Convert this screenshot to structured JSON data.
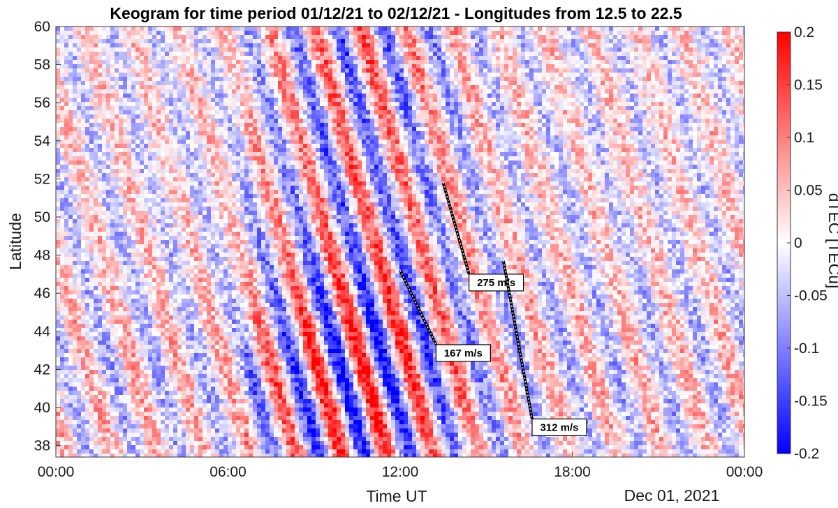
{
  "chart_data": {
    "type": "heatmap",
    "title": "Keogram for time period 01/12/21 to 02/12/21 - Longitudes from 12.5 to 22.5",
    "xlabel": "Time UT",
    "ylabel": "Latitude",
    "date_label": "Dec 01, 2021",
    "x_ticks": [
      "00:00",
      "06:00",
      "12:00",
      "18:00",
      "00:00"
    ],
    "x_tick_hours": [
      0,
      6,
      12,
      18,
      24
    ],
    "xlim_hours": [
      0,
      24
    ],
    "y_ticks": [
      38,
      40,
      42,
      44,
      46,
      48,
      50,
      52,
      54,
      56,
      58,
      60
    ],
    "ylim": [
      37.4,
      60
    ],
    "colorbar": {
      "label": "dTEC [TECu]",
      "ticks": [
        "0.2",
        "0.15",
        "0.1",
        "0.05",
        "0",
        "-0.05",
        "-0.1",
        "-0.15",
        "-0.2"
      ],
      "range": [
        -0.2,
        0.2
      ],
      "colors": {
        "low": "#0000ff",
        "mid": "#ffffff",
        "high": "#ff0000"
      }
    },
    "annotations": [
      {
        "text": "167 m/s",
        "line": [
          [
            12.0,
            47.2
          ],
          [
            13.25,
            43.3
          ]
        ]
      },
      {
        "text": "275 m/s",
        "line": [
          [
            13.5,
            51.8
          ],
          [
            14.4,
            47.0
          ]
        ]
      },
      {
        "text": "312 m/s",
        "line": [
          [
            15.6,
            47.7
          ],
          [
            16.6,
            39.4
          ]
        ]
      }
    ]
  }
}
